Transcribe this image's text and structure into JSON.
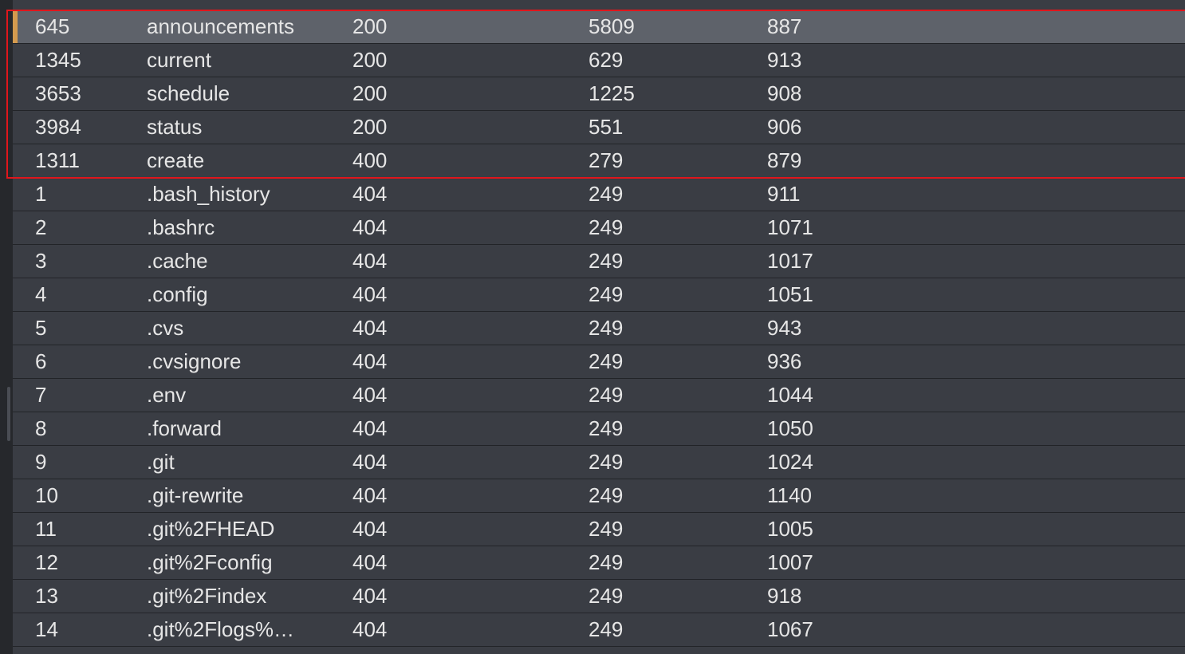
{
  "table": {
    "rows": [
      [
        "645",
        "announcements",
        "200",
        "5809",
        "887"
      ],
      [
        "1345",
        "current",
        "200",
        "629",
        "913"
      ],
      [
        "3653",
        "schedule",
        "200",
        "1225",
        "908"
      ],
      [
        "3984",
        "status",
        "200",
        "551",
        "906"
      ],
      [
        "1311",
        "create",
        "400",
        "279",
        "879"
      ],
      [
        "1",
        ".bash_history",
        "404",
        "249",
        "911"
      ],
      [
        "2",
        ".bashrc",
        "404",
        "249",
        "1071"
      ],
      [
        "3",
        ".cache",
        "404",
        "249",
        "1017"
      ],
      [
        "4",
        ".config",
        "404",
        "249",
        "1051"
      ],
      [
        "5",
        ".cvs",
        "404",
        "249",
        "943"
      ],
      [
        "6",
        ".cvsignore",
        "404",
        "249",
        "936"
      ],
      [
        "7",
        ".env",
        "404",
        "249",
        "1044"
      ],
      [
        "8",
        ".forward",
        "404",
        "249",
        "1050"
      ],
      [
        "9",
        ".git",
        "404",
        "249",
        "1024"
      ],
      [
        "10",
        ".git-rewrite",
        "404",
        "249",
        "1140"
      ],
      [
        "11",
        ".git%2FHEAD",
        "404",
        "249",
        "1005"
      ],
      [
        "12",
        ".git%2Fconfig",
        "404",
        "249",
        "1007"
      ],
      [
        "13",
        ".git%2Findex",
        "404",
        "249",
        "918"
      ],
      [
        "14",
        ".git%2Flogs%…",
        "404",
        "249",
        "1067"
      ]
    ]
  }
}
